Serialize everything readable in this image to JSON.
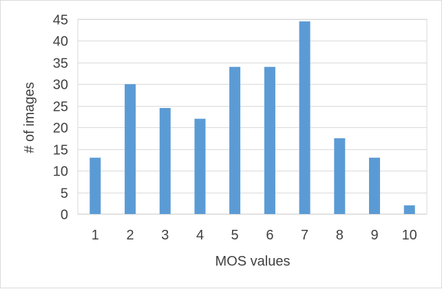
{
  "chart_data": {
    "type": "bar",
    "categories": [
      "1",
      "2",
      "3",
      "4",
      "5",
      "6",
      "7",
      "8",
      "9",
      "10"
    ],
    "values": [
      13,
      30,
      24.5,
      22,
      34,
      34,
      44.5,
      17.5,
      13,
      2
    ],
    "title": "",
    "xlabel": "MOS values",
    "ylabel": "# of images",
    "ylim": [
      0,
      45
    ],
    "yticks": [
      0,
      5,
      10,
      15,
      20,
      25,
      30,
      35,
      40,
      45
    ],
    "grid": true,
    "legend": "none",
    "colors": {
      "bar": "#5b9bd5",
      "grid": "#d9d9d9",
      "text": "#404040"
    }
  }
}
